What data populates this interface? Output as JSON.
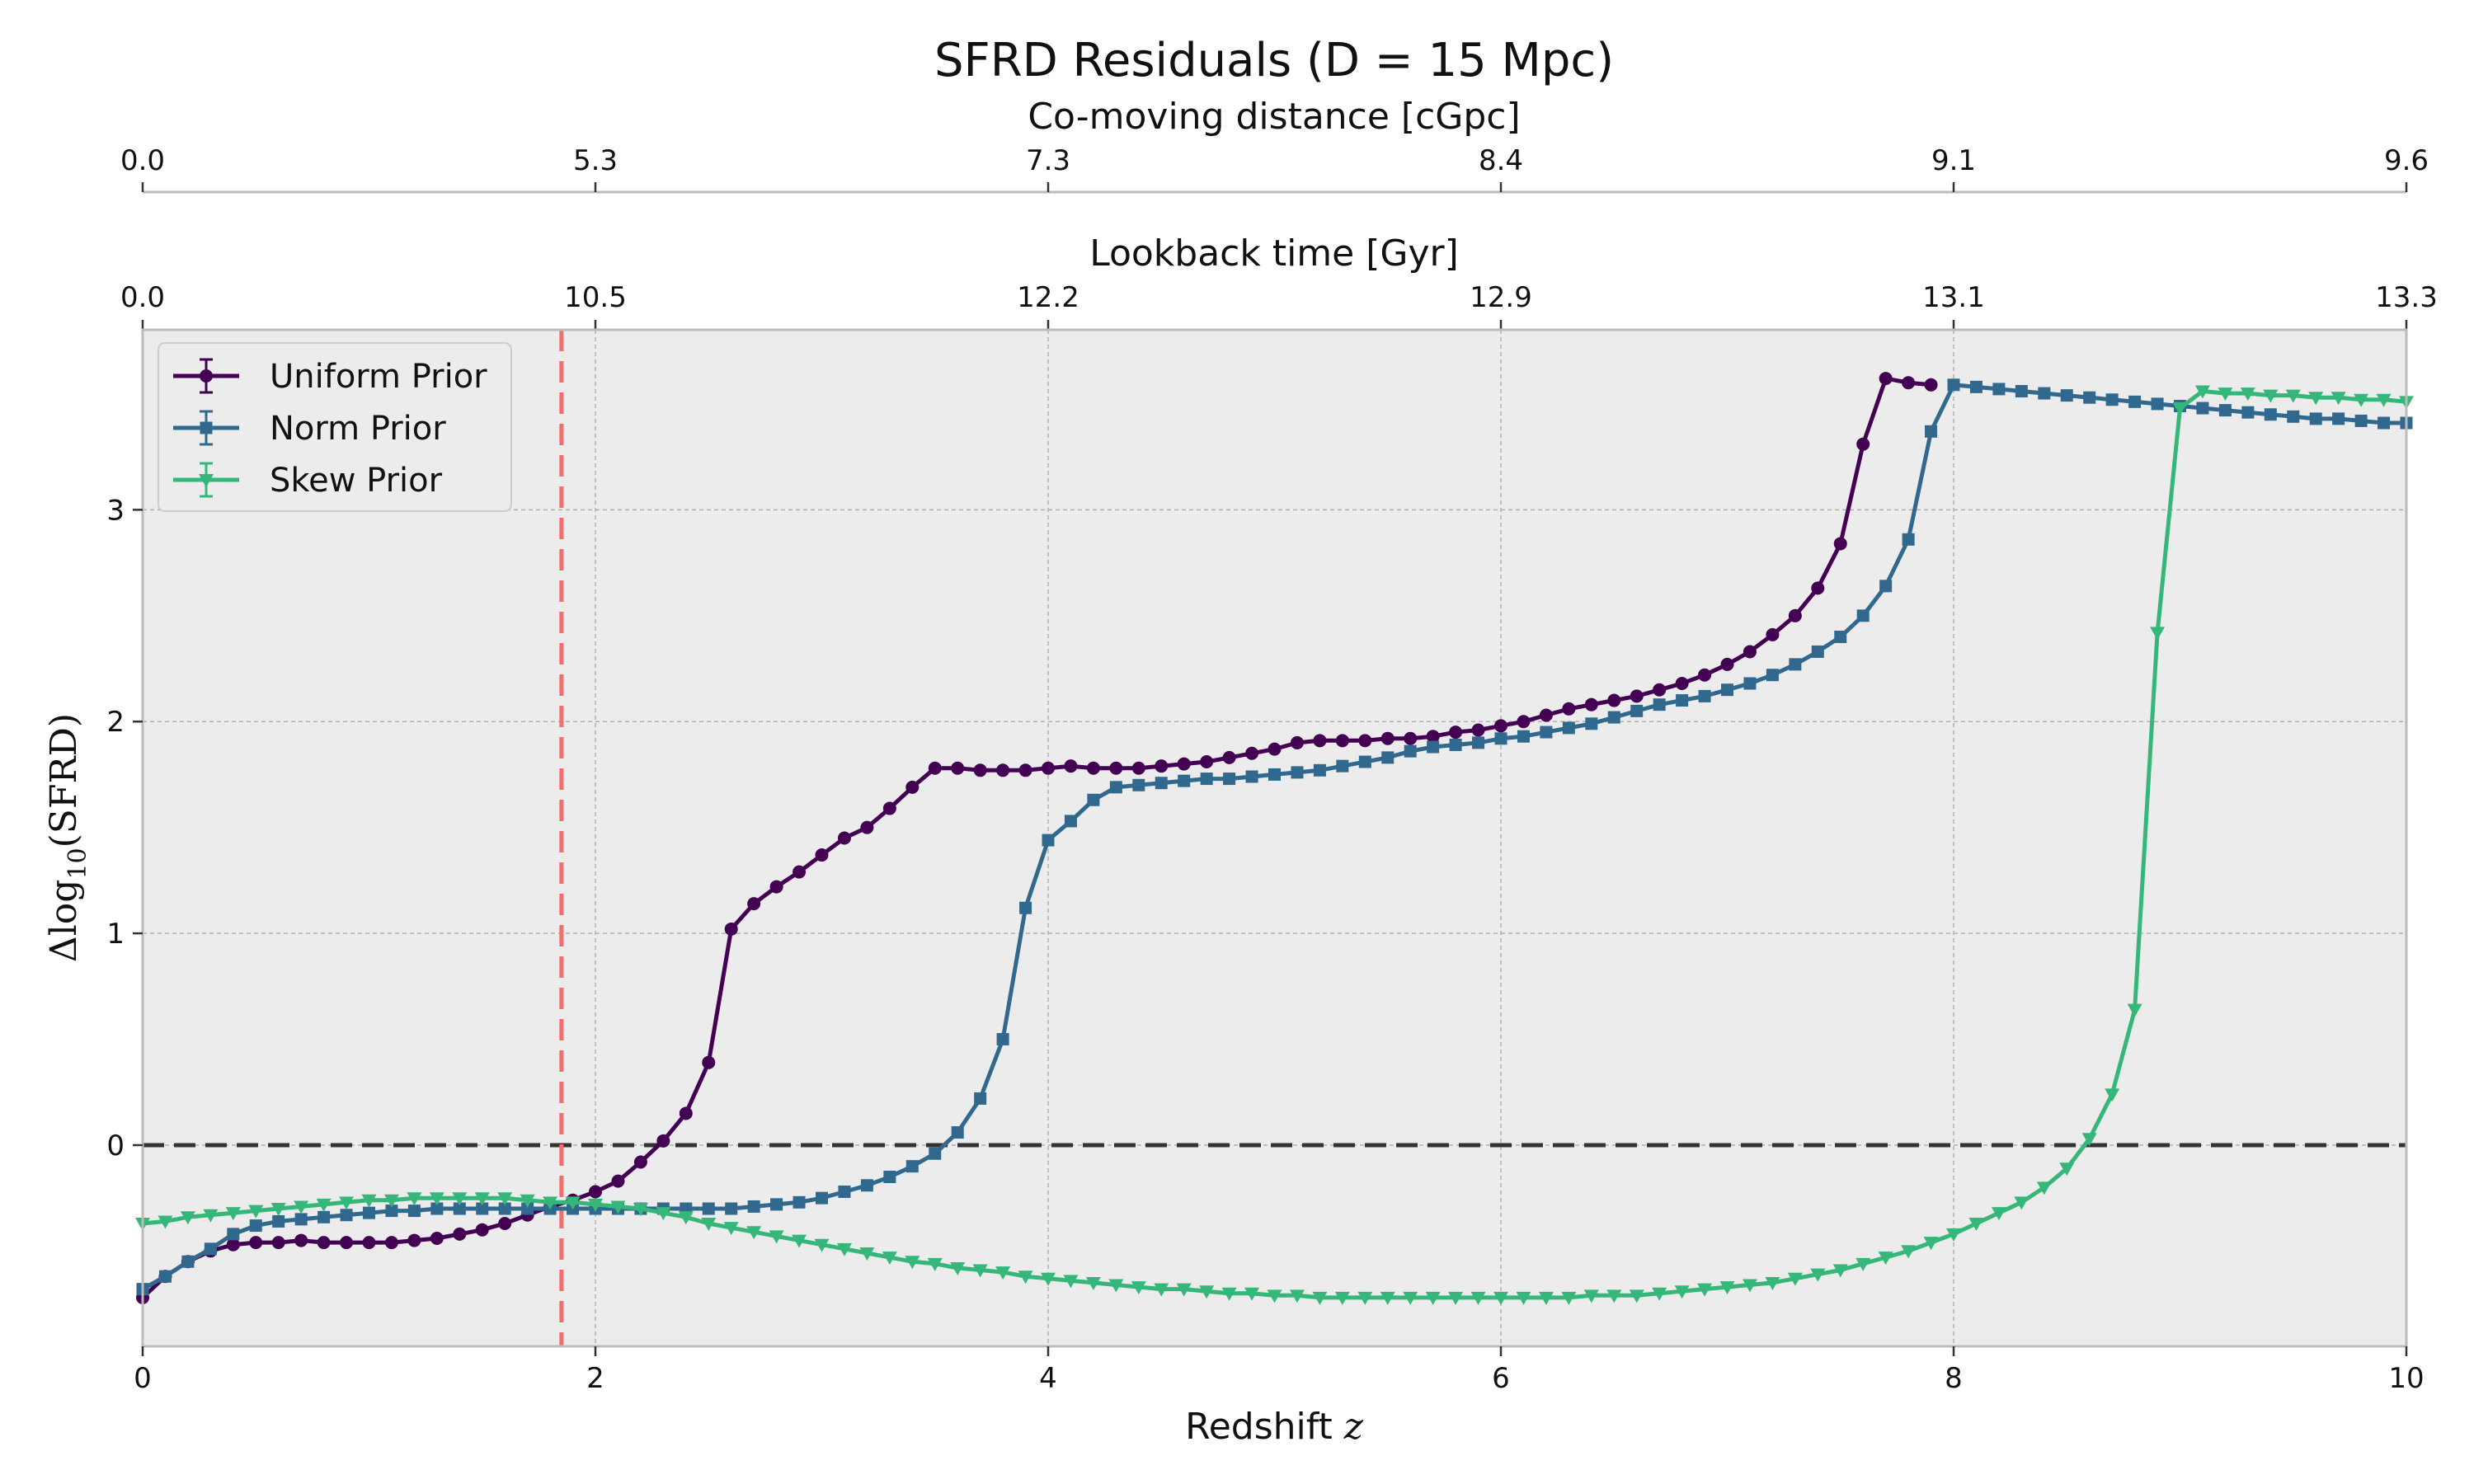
{
  "chart_data": {
    "type": "line",
    "title": "SFRD Residuals (D = 15 Mpc)",
    "xlabel": "Redshift z",
    "ylabel": "Δlog10(SFRD)",
    "xlim": [
      0,
      10
    ],
    "ylim": [
      -0.95,
      3.85
    ],
    "x_ticks": [
      0,
      2,
      4,
      6,
      8,
      10
    ],
    "y_ticks": [
      0,
      1,
      2,
      3
    ],
    "grid": true,
    "legend_position": "upper-left",
    "reference_lines": [
      {
        "kind": "horizontal",
        "value": 0,
        "color": "#333333",
        "style": "dashed"
      },
      {
        "kind": "vertical",
        "value": 1.85,
        "color": "#f07070",
        "style": "dashed"
      }
    ],
    "top_axes": [
      {
        "label": "Lookback time [Gyr]",
        "tick_positions": [
          0,
          2,
          4,
          6,
          8,
          10
        ],
        "tick_labels": [
          "0.0",
          "10.5",
          "12.2",
          "12.9",
          "13.1",
          "13.3"
        ]
      },
      {
        "label": "Co-moving distance [cGpc]",
        "tick_positions": [
          0,
          2,
          4,
          6,
          8,
          10
        ],
        "tick_labels": [
          "0.0",
          "5.3",
          "7.3",
          "8.4",
          "9.1",
          "9.6"
        ]
      }
    ],
    "series": [
      {
        "name": "Uniform Prior",
        "color": "#440154",
        "marker": "circle",
        "points": [
          [
            0,
            -0.72
          ],
          [
            0.1,
            -0.62
          ],
          [
            0.2,
            -0.55
          ],
          [
            0.3,
            -0.5
          ],
          [
            0.4,
            -0.47
          ],
          [
            0.5,
            -0.46
          ],
          [
            0.6,
            -0.46
          ],
          [
            0.7,
            -0.45
          ],
          [
            0.8,
            -0.46
          ],
          [
            0.9,
            -0.46
          ],
          [
            1.0,
            -0.46
          ],
          [
            1.1,
            -0.46
          ],
          [
            1.2,
            -0.45
          ],
          [
            1.3,
            -0.44
          ],
          [
            1.4,
            -0.42
          ],
          [
            1.5,
            -0.4
          ],
          [
            1.6,
            -0.37
          ],
          [
            1.7,
            -0.33
          ],
          [
            1.8,
            -0.29
          ],
          [
            1.9,
            -0.26
          ],
          [
            2.0,
            -0.22
          ],
          [
            2.1,
            -0.17
          ],
          [
            2.2,
            -0.08
          ],
          [
            2.3,
            0.02
          ],
          [
            2.4,
            0.15
          ],
          [
            2.5,
            0.39
          ],
          [
            2.6,
            1.02
          ],
          [
            2.7,
            1.14
          ],
          [
            2.8,
            1.22
          ],
          [
            2.9,
            1.29
          ],
          [
            3.0,
            1.37
          ],
          [
            3.1,
            1.45
          ],
          [
            3.2,
            1.5
          ],
          [
            3.3,
            1.59
          ],
          [
            3.4,
            1.69
          ],
          [
            3.5,
            1.78
          ],
          [
            3.6,
            1.78
          ],
          [
            3.7,
            1.77
          ],
          [
            3.8,
            1.77
          ],
          [
            3.9,
            1.77
          ],
          [
            4.0,
            1.78
          ],
          [
            4.1,
            1.79
          ],
          [
            4.2,
            1.78
          ],
          [
            4.3,
            1.78
          ],
          [
            4.4,
            1.78
          ],
          [
            4.5,
            1.79
          ],
          [
            4.6,
            1.8
          ],
          [
            4.7,
            1.81
          ],
          [
            4.8,
            1.83
          ],
          [
            4.9,
            1.85
          ],
          [
            5.0,
            1.87
          ],
          [
            5.1,
            1.9
          ],
          [
            5.2,
            1.91
          ],
          [
            5.3,
            1.91
          ],
          [
            5.4,
            1.91
          ],
          [
            5.5,
            1.92
          ],
          [
            5.6,
            1.92
          ],
          [
            5.7,
            1.93
          ],
          [
            5.8,
            1.95
          ],
          [
            5.9,
            1.96
          ],
          [
            6.0,
            1.98
          ],
          [
            6.1,
            2.0
          ],
          [
            6.2,
            2.03
          ],
          [
            6.3,
            2.06
          ],
          [
            6.4,
            2.08
          ],
          [
            6.5,
            2.1
          ],
          [
            6.6,
            2.12
          ],
          [
            6.7,
            2.15
          ],
          [
            6.8,
            2.18
          ],
          [
            6.9,
            2.22
          ],
          [
            7.0,
            2.27
          ],
          [
            7.1,
            2.33
          ],
          [
            7.2,
            2.41
          ],
          [
            7.3,
            2.5
          ],
          [
            7.4,
            2.63
          ],
          [
            7.5,
            2.84
          ],
          [
            7.6,
            3.31
          ],
          [
            7.7,
            3.62
          ],
          [
            7.8,
            3.6
          ],
          [
            7.9,
            3.59
          ]
        ]
      },
      {
        "name": "Norm Prior",
        "color": "#31688e",
        "marker": "square",
        "points": [
          [
            0,
            -0.68
          ],
          [
            0.1,
            -0.62
          ],
          [
            0.2,
            -0.55
          ],
          [
            0.3,
            -0.49
          ],
          [
            0.4,
            -0.42
          ],
          [
            0.5,
            -0.38
          ],
          [
            0.6,
            -0.36
          ],
          [
            0.7,
            -0.35
          ],
          [
            0.8,
            -0.34
          ],
          [
            0.9,
            -0.33
          ],
          [
            1.0,
            -0.32
          ],
          [
            1.1,
            -0.31
          ],
          [
            1.2,
            -0.31
          ],
          [
            1.3,
            -0.3
          ],
          [
            1.4,
            -0.3
          ],
          [
            1.5,
            -0.3
          ],
          [
            1.6,
            -0.3
          ],
          [
            1.7,
            -0.3
          ],
          [
            1.8,
            -0.3
          ],
          [
            1.9,
            -0.3
          ],
          [
            2.0,
            -0.3
          ],
          [
            2.1,
            -0.3
          ],
          [
            2.2,
            -0.3
          ],
          [
            2.3,
            -0.3
          ],
          [
            2.4,
            -0.3
          ],
          [
            2.5,
            -0.3
          ],
          [
            2.6,
            -0.3
          ],
          [
            2.7,
            -0.29
          ],
          [
            2.8,
            -0.28
          ],
          [
            2.9,
            -0.27
          ],
          [
            3.0,
            -0.25
          ],
          [
            3.1,
            -0.22
          ],
          [
            3.2,
            -0.19
          ],
          [
            3.3,
            -0.15
          ],
          [
            3.4,
            -0.1
          ],
          [
            3.5,
            -0.04
          ],
          [
            3.6,
            0.06
          ],
          [
            3.7,
            0.22
          ],
          [
            3.8,
            0.5
          ],
          [
            3.9,
            1.12
          ],
          [
            4.0,
            1.44
          ],
          [
            4.1,
            1.53
          ],
          [
            4.2,
            1.63
          ],
          [
            4.3,
            1.69
          ],
          [
            4.4,
            1.7
          ],
          [
            4.5,
            1.71
          ],
          [
            4.6,
            1.72
          ],
          [
            4.7,
            1.73
          ],
          [
            4.8,
            1.73
          ],
          [
            4.9,
            1.74
          ],
          [
            5.0,
            1.75
          ],
          [
            5.1,
            1.76
          ],
          [
            5.2,
            1.77
          ],
          [
            5.3,
            1.79
          ],
          [
            5.4,
            1.81
          ],
          [
            5.5,
            1.83
          ],
          [
            5.6,
            1.86
          ],
          [
            5.7,
            1.88
          ],
          [
            5.8,
            1.89
          ],
          [
            5.9,
            1.9
          ],
          [
            6.0,
            1.92
          ],
          [
            6.1,
            1.93
          ],
          [
            6.2,
            1.95
          ],
          [
            6.3,
            1.97
          ],
          [
            6.4,
            1.99
          ],
          [
            6.5,
            2.02
          ],
          [
            6.6,
            2.05
          ],
          [
            6.7,
            2.08
          ],
          [
            6.8,
            2.1
          ],
          [
            6.9,
            2.12
          ],
          [
            7.0,
            2.15
          ],
          [
            7.1,
            2.18
          ],
          [
            7.2,
            2.22
          ],
          [
            7.3,
            2.27
          ],
          [
            7.4,
            2.33
          ],
          [
            7.5,
            2.4
          ],
          [
            7.6,
            2.5
          ],
          [
            7.7,
            2.64
          ],
          [
            7.8,
            2.86
          ],
          [
            7.9,
            3.37
          ],
          [
            8.0,
            3.59
          ],
          [
            8.1,
            3.58
          ],
          [
            8.2,
            3.57
          ],
          [
            8.3,
            3.56
          ],
          [
            8.4,
            3.55
          ],
          [
            8.5,
            3.54
          ],
          [
            8.6,
            3.53
          ],
          [
            8.7,
            3.52
          ],
          [
            8.8,
            3.51
          ],
          [
            8.9,
            3.5
          ],
          [
            9.0,
            3.49
          ],
          [
            9.1,
            3.48
          ],
          [
            9.2,
            3.47
          ],
          [
            9.3,
            3.46
          ],
          [
            9.4,
            3.45
          ],
          [
            9.5,
            3.44
          ],
          [
            9.6,
            3.43
          ],
          [
            9.7,
            3.43
          ],
          [
            9.8,
            3.42
          ],
          [
            9.9,
            3.41
          ],
          [
            10.0,
            3.41
          ]
        ]
      },
      {
        "name": "Skew Prior",
        "color": "#35b779",
        "marker": "triangle-down",
        "points": [
          [
            0,
            -0.37
          ],
          [
            0.1,
            -0.36
          ],
          [
            0.2,
            -0.34
          ],
          [
            0.3,
            -0.33
          ],
          [
            0.4,
            -0.32
          ],
          [
            0.5,
            -0.31
          ],
          [
            0.6,
            -0.3
          ],
          [
            0.7,
            -0.29
          ],
          [
            0.8,
            -0.28
          ],
          [
            0.9,
            -0.27
          ],
          [
            1.0,
            -0.26
          ],
          [
            1.1,
            -0.26
          ],
          [
            1.2,
            -0.25
          ],
          [
            1.3,
            -0.25
          ],
          [
            1.4,
            -0.25
          ],
          [
            1.5,
            -0.25
          ],
          [
            1.6,
            -0.25
          ],
          [
            1.7,
            -0.26
          ],
          [
            1.8,
            -0.27
          ],
          [
            1.9,
            -0.27
          ],
          [
            2.0,
            -0.28
          ],
          [
            2.1,
            -0.29
          ],
          [
            2.2,
            -0.3
          ],
          [
            2.3,
            -0.32
          ],
          [
            2.4,
            -0.34
          ],
          [
            2.5,
            -0.37
          ],
          [
            2.6,
            -0.39
          ],
          [
            2.7,
            -0.41
          ],
          [
            2.8,
            -0.43
          ],
          [
            2.9,
            -0.45
          ],
          [
            3.0,
            -0.47
          ],
          [
            3.1,
            -0.49
          ],
          [
            3.2,
            -0.51
          ],
          [
            3.3,
            -0.53
          ],
          [
            3.4,
            -0.55
          ],
          [
            3.5,
            -0.56
          ],
          [
            3.6,
            -0.58
          ],
          [
            3.7,
            -0.59
          ],
          [
            3.8,
            -0.6
          ],
          [
            3.9,
            -0.62
          ],
          [
            4.0,
            -0.63
          ],
          [
            4.1,
            -0.64
          ],
          [
            4.2,
            -0.65
          ],
          [
            4.3,
            -0.66
          ],
          [
            4.4,
            -0.67
          ],
          [
            4.5,
            -0.68
          ],
          [
            4.6,
            -0.68
          ],
          [
            4.7,
            -0.69
          ],
          [
            4.8,
            -0.7
          ],
          [
            4.9,
            -0.7
          ],
          [
            5.0,
            -0.71
          ],
          [
            5.1,
            -0.71
          ],
          [
            5.2,
            -0.72
          ],
          [
            5.3,
            -0.72
          ],
          [
            5.4,
            -0.72
          ],
          [
            5.5,
            -0.72
          ],
          [
            5.6,
            -0.72
          ],
          [
            5.7,
            -0.72
          ],
          [
            5.8,
            -0.72
          ],
          [
            5.9,
            -0.72
          ],
          [
            6.0,
            -0.72
          ],
          [
            6.1,
            -0.72
          ],
          [
            6.2,
            -0.72
          ],
          [
            6.3,
            -0.72
          ],
          [
            6.4,
            -0.71
          ],
          [
            6.5,
            -0.71
          ],
          [
            6.6,
            -0.71
          ],
          [
            6.7,
            -0.7
          ],
          [
            6.8,
            -0.69
          ],
          [
            6.9,
            -0.68
          ],
          [
            7.0,
            -0.67
          ],
          [
            7.1,
            -0.66
          ],
          [
            7.2,
            -0.65
          ],
          [
            7.3,
            -0.63
          ],
          [
            7.4,
            -0.61
          ],
          [
            7.5,
            -0.59
          ],
          [
            7.6,
            -0.56
          ],
          [
            7.7,
            -0.53
          ],
          [
            7.8,
            -0.5
          ],
          [
            7.9,
            -0.46
          ],
          [
            8.0,
            -0.42
          ],
          [
            8.1,
            -0.37
          ],
          [
            8.2,
            -0.32
          ],
          [
            8.3,
            -0.27
          ],
          [
            8.4,
            -0.2
          ],
          [
            8.5,
            -0.11
          ],
          [
            8.6,
            0.03
          ],
          [
            8.7,
            0.24
          ],
          [
            8.8,
            0.64
          ],
          [
            8.9,
            2.42
          ],
          [
            9.0,
            3.48
          ],
          [
            9.1,
            3.56
          ],
          [
            9.2,
            3.55
          ],
          [
            9.3,
            3.55
          ],
          [
            9.4,
            3.54
          ],
          [
            9.5,
            3.54
          ],
          [
            9.6,
            3.53
          ],
          [
            9.7,
            3.53
          ],
          [
            9.8,
            3.52
          ],
          [
            9.9,
            3.52
          ],
          [
            10.0,
            3.51
          ]
        ]
      }
    ]
  },
  "colors": {
    "plot_background": "#ececec",
    "grid": "#b0b0b0",
    "spine": "#bbbbbb"
  }
}
